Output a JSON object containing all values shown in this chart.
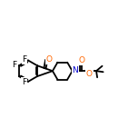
{
  "bg_color": "#ffffff",
  "bond_color": "#000000",
  "atom_colors": {
    "F": "#000000",
    "O": "#ff6600",
    "N": "#0000cc",
    "C": "#000000"
  },
  "bond_width": 1.3,
  "font_size_atom": 6.5,
  "xlim": [
    0,
    14
  ],
  "ylim": [
    2,
    10
  ]
}
